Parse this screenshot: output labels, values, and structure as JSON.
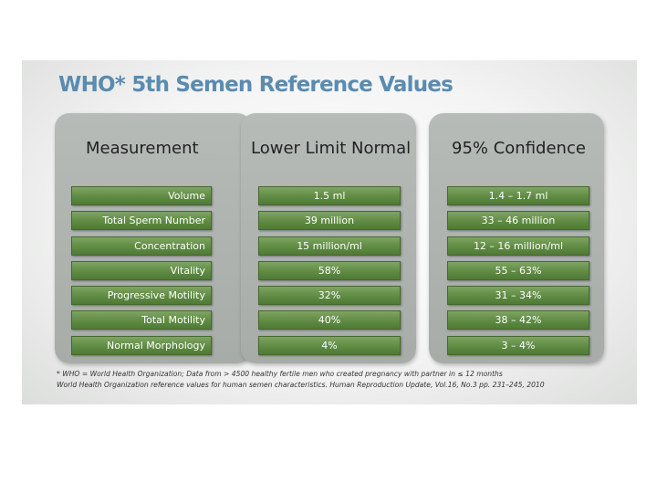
{
  "slide": {
    "title": "WHO* 5th Semen Reference Values",
    "headers": [
      "Measurement",
      "Lower Limit Normal",
      "95% Confidence"
    ],
    "rows": [
      {
        "measurement": "Volume",
        "lower_limit": "1.5 ml",
        "confidence": "1.4 – 1.7 ml"
      },
      {
        "measurement": "Total Sperm Number",
        "lower_limit": "39 million",
        "confidence": "33 – 46 million"
      },
      {
        "measurement": "Concentration",
        "lower_limit": "15 million/ml",
        "confidence": "12 – 16 million/ml"
      },
      {
        "measurement": "Vitality",
        "lower_limit": "58%",
        "confidence": "55 – 63%"
      },
      {
        "measurement": "Progressive Motility",
        "lower_limit": "32%",
        "confidence": "31 – 34%"
      },
      {
        "measurement": "Total Motility",
        "lower_limit": "40%",
        "confidence": "38 – 42%"
      },
      {
        "measurement": "Normal Morphology",
        "lower_limit": "4%",
        "confidence": "3 – 4%"
      }
    ],
    "footnote_line1": "* WHO = World Health Organization; Data from > 4500 healthy fertile men who created pregnancy with partner in ≤ 12 months",
    "footnote_line2": "World Health Organization reference values for human semen characteristics. Human Reproduction Update, Vol.16, No.3 pp. 231–245, 2010"
  },
  "colors": {
    "title": "#5a8bb0",
    "panel": "#b0b4b1",
    "cell": "#5f8b43"
  }
}
